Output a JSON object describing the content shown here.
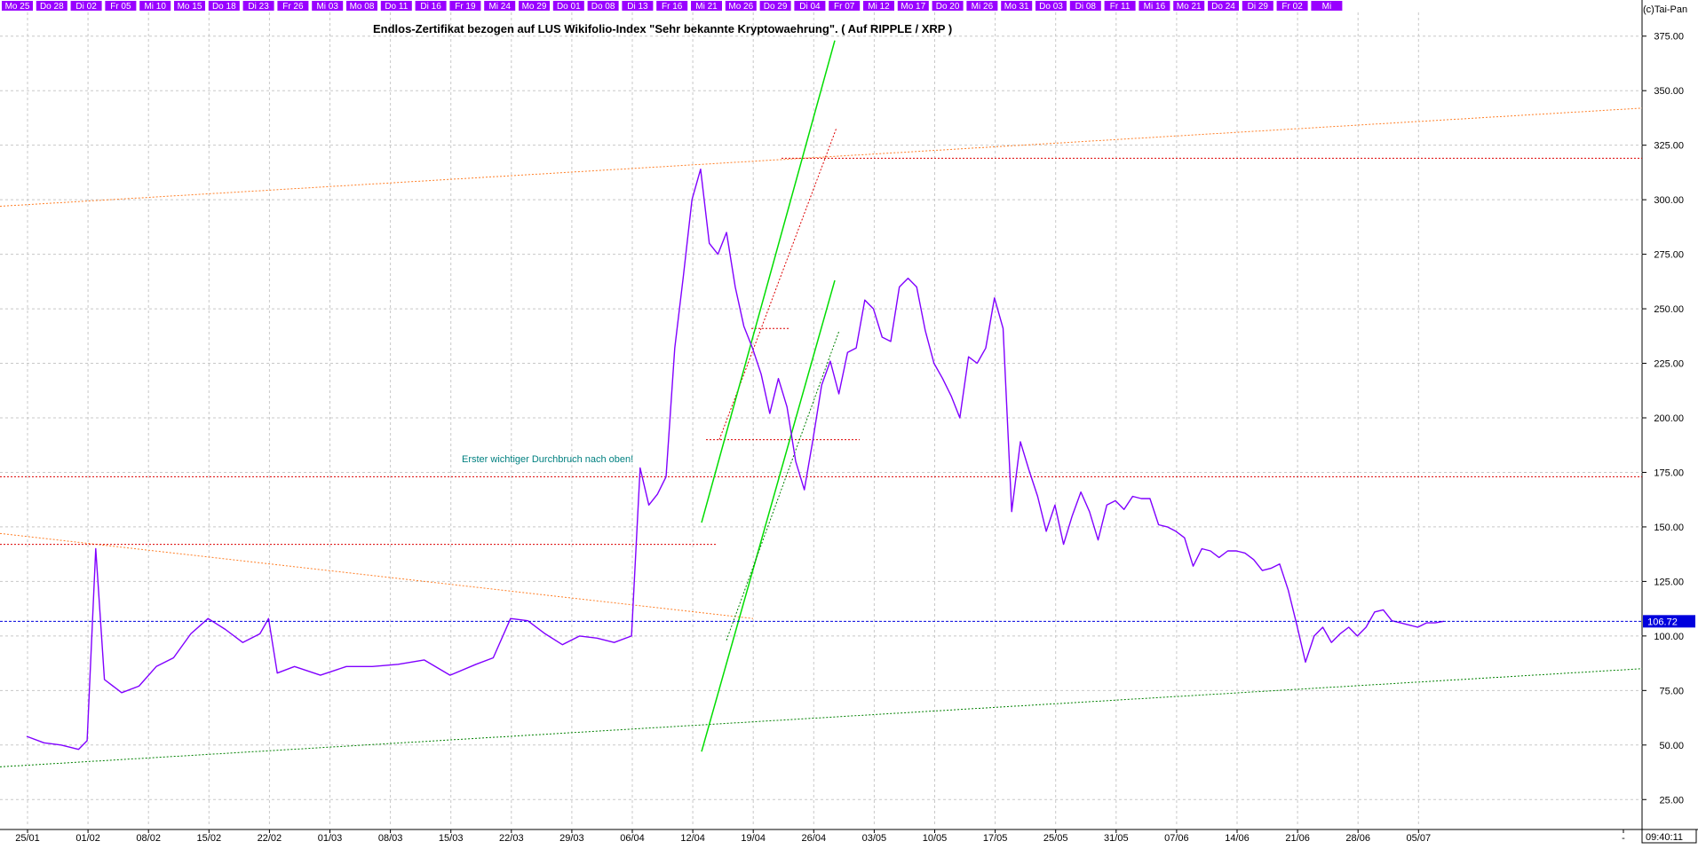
{
  "copyright": "(c)Tai-Pan",
  "time_label": "09:40:11",
  "colors": {
    "price": "#8000ff",
    "grid": "#c8c8c8",
    "top_band": "#9900ff",
    "top_band_text": "#ffffff",
    "current_price": "#0000dd",
    "red_dotted": "#dd0000",
    "orange_dotted": "#ff7f27",
    "green_dotted": "#008000",
    "green_solid": "#00dd00",
    "annotation": "#008080"
  },
  "chart_data": {
    "type": "line",
    "title": "Endlos-Zertifikat bezogen auf LUS Wikifolio-Index \"Sehr bekannte Kryptowaehrung\". ( Auf RIPPLE / XRP )",
    "xlabel": "",
    "ylabel": "",
    "ylim": [
      12.5,
      387.5
    ],
    "grid": true,
    "y_ticks": [
      "25.00",
      "50.00",
      "75.00",
      "100.00",
      "125.00",
      "150.00",
      "175.00",
      "200.00",
      "225.00",
      "250.00",
      "275.00",
      "300.00",
      "325.00",
      "350.00",
      "375.00"
    ],
    "x_ticks": [
      "25/01",
      "01/02",
      "08/02",
      "15/02",
      "22/02",
      "01/03",
      "08/03",
      "15/03",
      "22/03",
      "29/03",
      "06/04",
      "12/04",
      "19/04",
      "26/04",
      "03/05",
      "10/05",
      "17/05",
      "25/05",
      "31/05",
      "07/06",
      "14/06",
      "21/06",
      "28/06",
      "05/07",
      "-"
    ],
    "top_day_labels": [
      "Mo 25",
      "Do 28",
      "Di 02",
      "Fr 05",
      "Mi 10",
      "Mo 15",
      "Do 18",
      "Di 23",
      "Fr 26",
      "Mi 03",
      "Mo 08",
      "Do 11",
      "Di 16",
      "Fr 19",
      "Mi 24",
      "Mo 29",
      "Do 01",
      "Do 08",
      "Di 13",
      "Fr 16",
      "Mi 21",
      "Mo 26",
      "Do 29",
      "Di 04",
      "Fr 07",
      "Mi 12",
      "Mo 17",
      "Do 20",
      "Mi 26",
      "Mo 31",
      "Do 03",
      "Di 08",
      "Fr 11",
      "Mi 16",
      "Mo 21",
      "Do 24",
      "Di 29",
      "Fr 02",
      "Mi"
    ],
    "current_price": {
      "value": 106.72,
      "label": "106.72"
    },
    "annotation": "Erster wichtiger Durchbruch nach oben!",
    "series": [
      {
        "x": [
          "2021-01-25",
          "2021-01-27",
          "2021-01-29",
          "2021-01-31",
          "2021-02-01",
          "2021-02-02",
          "2021-02-03",
          "2021-02-05",
          "2021-02-07",
          "2021-02-09",
          "2021-02-11",
          "2021-02-13",
          "2021-02-15",
          "2021-02-17",
          "2021-02-19",
          "2021-02-21",
          "2021-02-22",
          "2021-02-23",
          "2021-02-25",
          "2021-02-28",
          "2021-03-03",
          "2021-03-06",
          "2021-03-09",
          "2021-03-12",
          "2021-03-15",
          "2021-03-18",
          "2021-03-20",
          "2021-03-22",
          "2021-03-24",
          "2021-03-26",
          "2021-03-28",
          "2021-03-30",
          "2021-04-01",
          "2021-04-03",
          "2021-04-05",
          "2021-04-06",
          "2021-04-07",
          "2021-04-08",
          "2021-04-09",
          "2021-04-10",
          "2021-04-11",
          "2021-04-12",
          "2021-04-13",
          "2021-04-14",
          "2021-04-15",
          "2021-04-16",
          "2021-04-17",
          "2021-04-18",
          "2021-04-19",
          "2021-04-20",
          "2021-04-21",
          "2021-04-22",
          "2021-04-23",
          "2021-04-24",
          "2021-04-25",
          "2021-04-26",
          "2021-04-27",
          "2021-04-28",
          "2021-04-29",
          "2021-04-30",
          "2021-05-01",
          "2021-05-02",
          "2021-05-03",
          "2021-05-04",
          "2021-05-05",
          "2021-05-06",
          "2021-05-07",
          "2021-05-08",
          "2021-05-09",
          "2021-05-10",
          "2021-05-11",
          "2021-05-12",
          "2021-05-13",
          "2021-05-14",
          "2021-05-15",
          "2021-05-16",
          "2021-05-17",
          "2021-05-18",
          "2021-05-19",
          "2021-05-20",
          "2021-05-21",
          "2021-05-22",
          "2021-05-23",
          "2021-05-24",
          "2021-05-25",
          "2021-05-26",
          "2021-05-27",
          "2021-05-28",
          "2021-05-29",
          "2021-05-30",
          "2021-05-31",
          "2021-06-01",
          "2021-06-02",
          "2021-06-03",
          "2021-06-04",
          "2021-06-05",
          "2021-06-06",
          "2021-06-07",
          "2021-06-08",
          "2021-06-09",
          "2021-06-10",
          "2021-06-11",
          "2021-06-12",
          "2021-06-13",
          "2021-06-14",
          "2021-06-15",
          "2021-06-16",
          "2021-06-17",
          "2021-06-18",
          "2021-06-19",
          "2021-06-20",
          "2021-06-21",
          "2021-06-22",
          "2021-06-23",
          "2021-06-24",
          "2021-06-25",
          "2021-06-26",
          "2021-06-27",
          "2021-06-28",
          "2021-06-29",
          "2021-06-30",
          "2021-07-01",
          "2021-07-02",
          "2021-07-03",
          "2021-07-04",
          "2021-07-05",
          "2021-07-06",
          "2021-07-07",
          "2021-07-08"
        ],
        "values": [
          54,
          51,
          50,
          48,
          52,
          140,
          80,
          74,
          77,
          86,
          90,
          101,
          108,
          103,
          97,
          101,
          108,
          83,
          86,
          82,
          86,
          86,
          87,
          89,
          82,
          87,
          90,
          108,
          107,
          101,
          96,
          100,
          99,
          97,
          100,
          177,
          160,
          165,
          173,
          232,
          265,
          300,
          314,
          280,
          275,
          285,
          260,
          242,
          232,
          220,
          202,
          218,
          205,
          180,
          167,
          190,
          215,
          226,
          211,
          230,
          232,
          254,
          250,
          237,
          235,
          260,
          264,
          260,
          240,
          225,
          218,
          210,
          200,
          228,
          225,
          232,
          255,
          241,
          157,
          189,
          176,
          164,
          148,
          160,
          142,
          155,
          166,
          157,
          144,
          160,
          162,
          158,
          164,
          163,
          163,
          151,
          150,
          148,
          145,
          132,
          140,
          139,
          136,
          139,
          139,
          138,
          135,
          130,
          131,
          133,
          121,
          105,
          88,
          100,
          104,
          97,
          101,
          104,
          100,
          104,
          111,
          112,
          107,
          106,
          105,
          104,
          106,
          106,
          106.72
        ]
      }
    ]
  }
}
